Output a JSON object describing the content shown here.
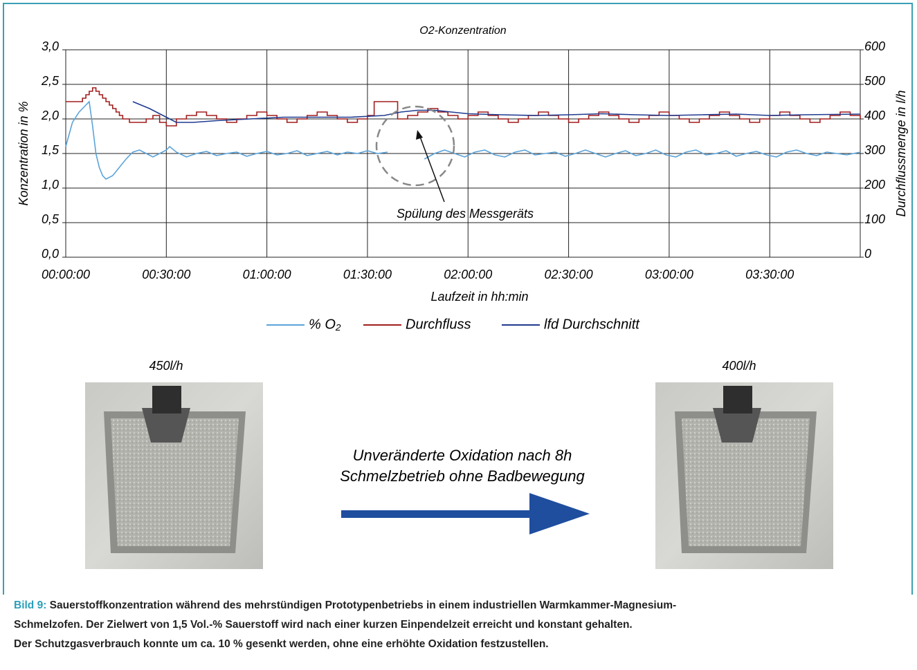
{
  "chart_data": {
    "type": "line",
    "title": "O2-Konzentration",
    "x_label": "Laufzeit  in hh:min",
    "y_label": "Konzentration in %",
    "y2_label": "Durchflussmenge in l/h",
    "xlim": [
      0,
      237
    ],
    "xticks": [
      {
        "value": 0,
        "label": "00:00:00"
      },
      {
        "value": 30,
        "label": "00:30:00"
      },
      {
        "value": 60,
        "label": "01:00:00"
      },
      {
        "value": 90,
        "label": "01:30:00"
      },
      {
        "value": 120,
        "label": "02:00:00"
      },
      {
        "value": 150,
        "label": "02:30:00"
      },
      {
        "value": 180,
        "label": "03:00:00"
      },
      {
        "value": 210,
        "label": "03:30:00"
      }
    ],
    "ylim": [
      0,
      3
    ],
    "yticks": [
      {
        "value": 0,
        "label": "0,0"
      },
      {
        "value": 0.5,
        "label": "0,5"
      },
      {
        "value": 1,
        "label": "1,0"
      },
      {
        "value": 1.5,
        "label": "1,5"
      },
      {
        "value": 2,
        "label": "2,0"
      },
      {
        "value": 2.5,
        "label": "2,5"
      },
      {
        "value": 3,
        "label": "3,0"
      }
    ],
    "y2lim": [
      0,
      600
    ],
    "y2ticks": [
      0,
      100,
      200,
      300,
      400,
      500,
      600
    ],
    "grid": true,
    "legend": "bottom",
    "annotation": "Spülung des Messgeräts",
    "series": [
      {
        "name": "% O₂",
        "color": "#5ba3d9",
        "axis": "y",
        "x": [
          0,
          2,
          4,
          6,
          7,
          8,
          9,
          10,
          11,
          12,
          14,
          16,
          18,
          20,
          22,
          24,
          26,
          28,
          30,
          31,
          33,
          36,
          39,
          42,
          45,
          48,
          51,
          54,
          57,
          60,
          63,
          66,
          69,
          72,
          75,
          78,
          81,
          84,
          87,
          90,
          93,
          96,
          100,
          107,
          110,
          113,
          116,
          119,
          122,
          125,
          128,
          131,
          134,
          137,
          140,
          143,
          146,
          149,
          152,
          155,
          158,
          161,
          164,
          167,
          170,
          173,
          176,
          179,
          182,
          185,
          188,
          191,
          194,
          197,
          200,
          203,
          206,
          209,
          212,
          215,
          218,
          221,
          224,
          227,
          230,
          233,
          237
        ],
        "values": [
          1.6,
          1.95,
          2.1,
          2.2,
          2.25,
          1.9,
          1.5,
          1.3,
          1.18,
          1.13,
          1.18,
          1.3,
          1.42,
          1.52,
          1.55,
          1.5,
          1.45,
          1.5,
          1.55,
          1.6,
          1.52,
          1.45,
          1.5,
          1.53,
          1.47,
          1.5,
          1.52,
          1.46,
          1.5,
          1.53,
          1.48,
          1.5,
          1.54,
          1.47,
          1.5,
          1.53,
          1.48,
          1.52,
          1.5,
          1.54,
          1.5,
          1.52,
          null,
          1.42,
          1.5,
          1.55,
          1.5,
          1.45,
          1.52,
          1.55,
          1.48,
          1.45,
          1.52,
          1.55,
          1.48,
          1.5,
          1.52,
          1.46,
          1.5,
          1.55,
          1.5,
          1.45,
          1.5,
          1.54,
          1.47,
          1.5,
          1.55,
          1.48,
          1.45,
          1.52,
          1.55,
          1.48,
          1.5,
          1.54,
          1.46,
          1.5,
          1.53,
          1.48,
          1.45,
          1.52,
          1.55,
          1.5,
          1.47,
          1.52,
          1.5,
          1.48,
          1.52
        ]
      },
      {
        "name": "Durchfluss",
        "color": "#a01c1c",
        "axis": "y2",
        "step": true,
        "x": [
          0,
          5,
          6,
          7,
          8,
          9,
          10,
          11,
          12,
          13,
          14,
          15,
          16,
          17,
          19,
          22,
          24,
          26,
          28,
          30,
          33,
          36,
          39,
          42,
          45,
          48,
          51,
          54,
          57,
          60,
          63,
          66,
          69,
          72,
          75,
          78,
          81,
          84,
          87,
          90,
          92,
          99,
          102,
          105,
          108,
          111,
          114,
          117,
          120,
          123,
          126,
          129,
          132,
          135,
          138,
          141,
          144,
          147,
          150,
          153,
          156,
          159,
          162,
          165,
          168,
          171,
          174,
          177,
          180,
          183,
          186,
          189,
          192,
          195,
          198,
          201,
          204,
          207,
          210,
          213,
          216,
          219,
          222,
          225,
          228,
          231,
          234,
          237
        ],
        "values": [
          450,
          460,
          470,
          480,
          490,
          480,
          470,
          460,
          450,
          440,
          430,
          420,
          410,
          400,
          390,
          390,
          400,
          410,
          390,
          380,
          400,
          410,
          420,
          410,
          400,
          390,
          400,
          410,
          420,
          410,
          400,
          390,
          400,
          410,
          420,
          410,
          400,
          390,
          400,
          410,
          450,
          400,
          410,
          420,
          430,
          420,
          410,
          400,
          410,
          420,
          410,
          400,
          390,
          400,
          410,
          420,
          410,
          400,
          390,
          400,
          410,
          420,
          410,
          400,
          390,
          400,
          410,
          420,
          410,
          400,
          390,
          400,
          410,
          420,
          410,
          400,
          390,
          400,
          410,
          420,
          410,
          400,
          390,
          400,
          410,
          420,
          410,
          400
        ]
      },
      {
        "name": "lfd Durchschnitt",
        "color": "#1f3a8f",
        "axis": "y2",
        "x": [
          20,
          25,
          30,
          33,
          38,
          45,
          55,
          65,
          75,
          85,
          95,
          100,
          105,
          110,
          115,
          120,
          130,
          140,
          150,
          160,
          170,
          180,
          190,
          200,
          210,
          220,
          237
        ],
        "values": [
          450,
          430,
          405,
          390,
          390,
          395,
          400,
          405,
          405,
          405,
          410,
          420,
          425,
          425,
          420,
          415,
          412,
          410,
          412,
          415,
          412,
          410,
          412,
          414,
          410,
          412,
          414
        ]
      }
    ]
  },
  "images": [
    {
      "label": "450l/h"
    },
    {
      "label": "400l/h"
    }
  ],
  "arrow_text": [
    "Unveränderte Oxidation nach 8h",
    "Schmelzbetrieb ohne Badbewegung"
  ],
  "caption": {
    "label": "Bild 9:",
    "lines": [
      " Sauerstoffkonzentration während des mehrstündigen Prototypenbetriebs in einem industriellen Warmkammer-Magnesium-",
      "Schmelzofen. Der Zielwert von 1,5 Vol.-% Sauerstoff wird nach einer kurzen Einpendelzeit erreicht und konstant gehalten.",
      "Der Schutzgasverbrauch konnte um ca. 10 % gesenkt werden, ohne eine erhöhte Oxidation festzustellen."
    ]
  }
}
